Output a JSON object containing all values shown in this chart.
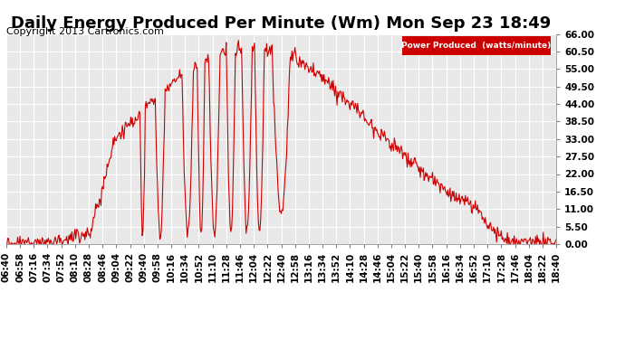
{
  "title": "Daily Energy Produced Per Minute (Wm) Mon Sep 23 18:49",
  "copyright": "Copyright 2013 Cartronics.com",
  "legend_label": "Power Produced  (watts/minute)",
  "legend_bg": "#cc0000",
  "legend_text_color": "#ffffff",
  "line_color": "#cc0000",
  "bg_color": "#ffffff",
  "plot_bg_color": "#e8e8e8",
  "grid_color": "#ffffff",
  "yticks": [
    0.0,
    5.5,
    11.0,
    16.5,
    22.0,
    27.5,
    33.0,
    38.5,
    44.0,
    49.5,
    55.0,
    60.5,
    66.0
  ],
  "ylim": [
    0.0,
    66.0
  ],
  "title_fontsize": 13,
  "copyright_fontsize": 8,
  "tick_fontsize": 7.5
}
